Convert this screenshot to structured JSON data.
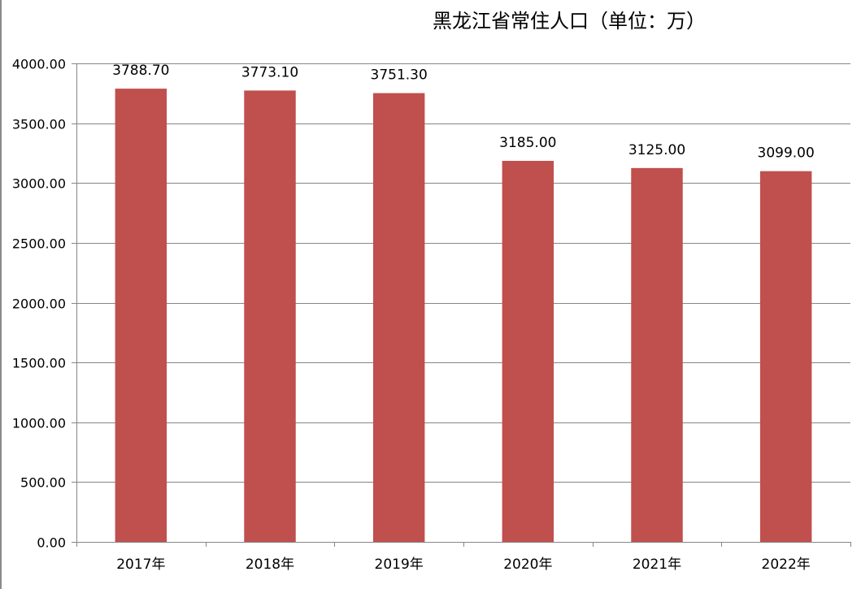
{
  "chart_data": {
    "type": "bar",
    "title": "黑龙江省常住人口（单位：万）",
    "categories": [
      "2017年",
      "2018年",
      "2019年",
      "2020年",
      "2021年",
      "2022年"
    ],
    "values": [
      3788.7,
      3773.1,
      3751.3,
      3185.0,
      3125.0,
      3099.0
    ],
    "value_labels": [
      "3788.70",
      "3773.10",
      "3751.30",
      "3185.00",
      "3125.00",
      "3099.00"
    ],
    "xlabel": "",
    "ylabel": "",
    "ylim": [
      0,
      4000
    ],
    "yticks": [
      0,
      500,
      1000,
      1500,
      2000,
      2500,
      3000,
      3500,
      4000
    ],
    "ytick_labels": [
      "0.00",
      "500.00",
      "1000.00",
      "1500.00",
      "2000.00",
      "2500.00",
      "3000.00",
      "3500.00",
      "4000.00"
    ],
    "grid": true,
    "legend": "none",
    "colors": {
      "bar": "#C0504D",
      "grid": "#868686",
      "axis": "#868686"
    }
  }
}
